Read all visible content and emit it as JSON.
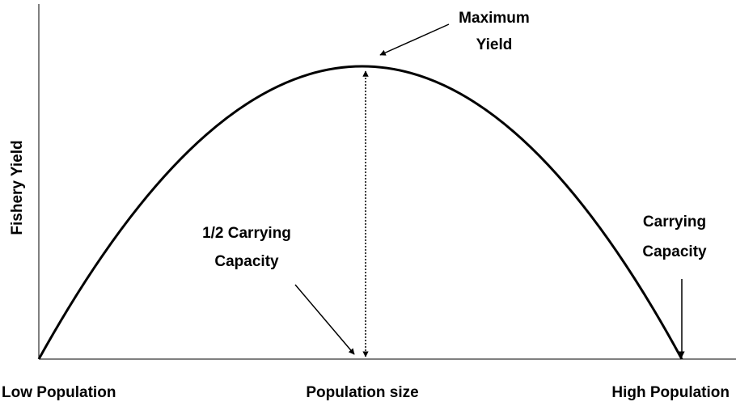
{
  "y_axis_label": "Fishery Yield",
  "x_axis_labels": {
    "left": "Low Population",
    "center": "Population size",
    "right": "High Population"
  },
  "annotations": {
    "maximum_yield": [
      "Maximum",
      "Yield"
    ],
    "half_capacity": [
      "1/2 Carrying",
      "Capacity"
    ],
    "carrying_capacity": [
      "Carrying",
      "Capacity"
    ]
  }
}
